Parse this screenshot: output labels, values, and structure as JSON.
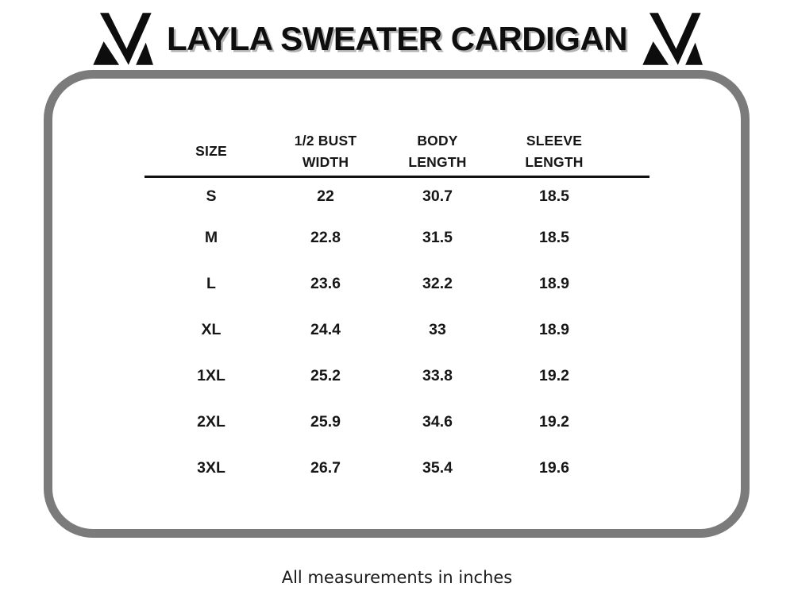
{
  "header": {
    "title": "LAYLA SWEATER CARDIGAN",
    "logo_left": "brand-monogram-m",
    "logo_right": "brand-monogram-m"
  },
  "chart_data": {
    "type": "table",
    "title": "LAYLA SWEATER CARDIGAN",
    "column_labels": [
      "SIZE",
      "1/2 BUST WIDTH",
      "BODY LENGTH",
      "SLEEVE LENGTH"
    ],
    "columns": [
      [
        "SIZE"
      ],
      [
        "1/2 BUST",
        "WIDTH"
      ],
      [
        "BODY",
        "LENGTH"
      ],
      [
        "SLEEVE",
        "LENGTH"
      ]
    ],
    "rows": [
      [
        "S",
        "22",
        "30.7",
        "18.5"
      ],
      [
        "M",
        "22.8",
        "31.5",
        "18.5"
      ],
      [
        "L",
        "23.6",
        "32.2",
        "18.9"
      ],
      [
        "XL",
        "24.4",
        "33",
        "18.9"
      ],
      [
        "1XL",
        "25.2",
        "33.8",
        "19.2"
      ],
      [
        "2XL",
        "25.9",
        "34.6",
        "19.2"
      ],
      [
        "3XL",
        "26.7",
        "35.4",
        "19.6"
      ]
    ],
    "units": "inches"
  },
  "footnote": "All measurements in inches",
  "colors": {
    "text": "#141414",
    "frame_border": "#7b7b7b",
    "title_shadow": "#b3b3b3",
    "header_rule": "#111111"
  }
}
